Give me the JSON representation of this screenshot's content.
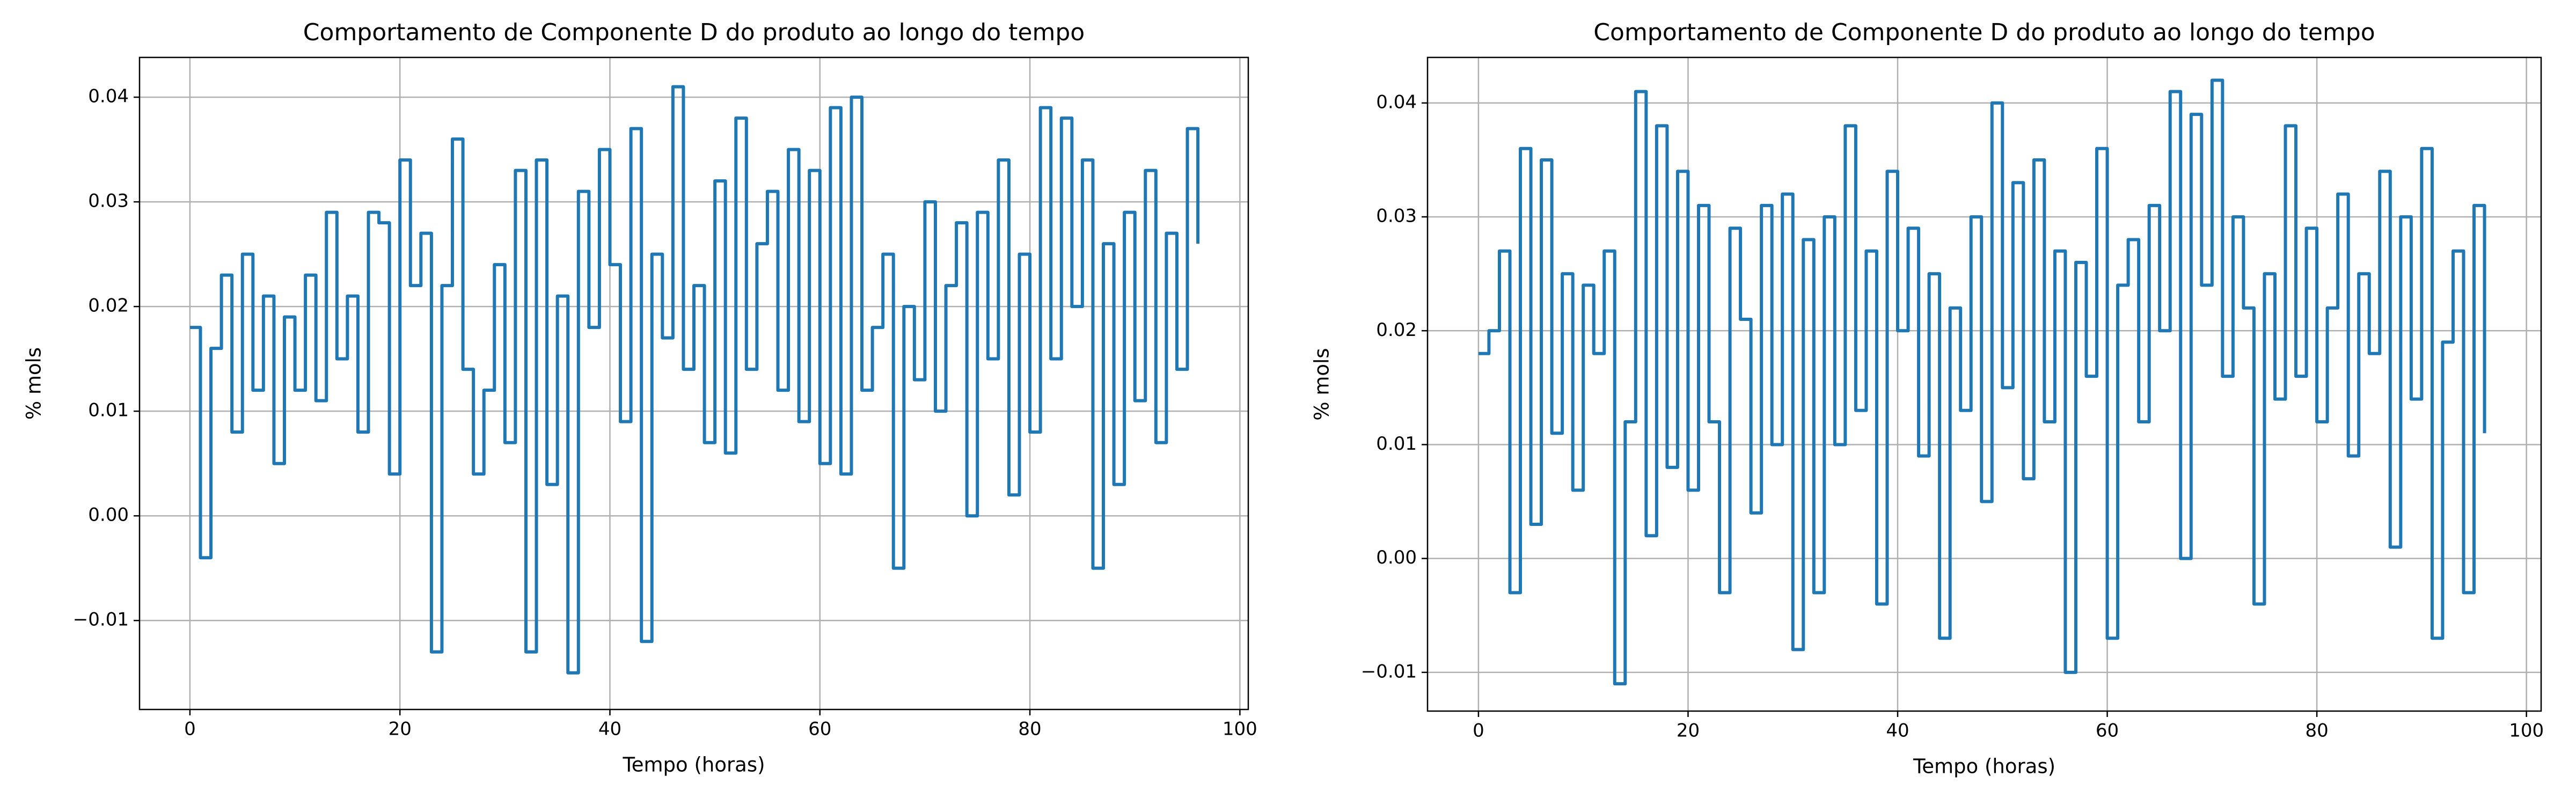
{
  "chart_data": [
    {
      "type": "line",
      "drawstyle": "steps-post",
      "title": "Comportamento de Componente D do produto ao longo do tempo",
      "xlabel": "Tempo (horas)",
      "ylabel": "% mols",
      "grid": true,
      "xlim": [
        -4.8,
        100.8
      ],
      "ylim": [
        -0.0185,
        0.0438
      ],
      "xticks": [
        0,
        20,
        40,
        60,
        80,
        100
      ],
      "yticks": [
        {
          "value": -0.01,
          "label": "−0.01"
        },
        {
          "value": 0,
          "label": "0.00"
        },
        0.01,
        0.02,
        0.03,
        0.04
      ],
      "x": [
        0,
        1,
        2,
        3,
        4,
        5,
        6,
        7,
        8,
        9,
        10,
        11,
        12,
        13,
        14,
        15,
        16,
        17,
        18,
        19,
        20,
        21,
        22,
        23,
        24,
        25,
        26,
        27,
        28,
        29,
        30,
        31,
        32,
        33,
        34,
        35,
        36,
        37,
        38,
        39,
        40,
        41,
        42,
        43,
        44,
        45,
        46,
        47,
        48,
        49,
        50,
        51,
        52,
        53,
        54,
        55,
        56,
        57,
        58,
        59,
        60,
        61,
        62,
        63,
        64,
        65,
        66,
        67,
        68,
        69,
        70,
        71,
        72,
        73,
        74,
        75,
        76,
        77,
        78,
        79,
        80,
        81,
        82,
        83,
        84,
        85,
        86,
        87,
        88,
        89,
        90,
        91,
        92,
        93,
        94,
        95,
        96
      ],
      "series": [
        {
          "color": "#1f77b4",
          "values": [
            0.018,
            -0.004,
            0.016,
            0.023,
            0.008,
            0.025,
            0.012,
            0.021,
            0.005,
            0.019,
            0.012,
            0.023,
            0.011,
            0.029,
            0.015,
            0.021,
            0.008,
            0.029,
            0.028,
            0.004,
            0.034,
            0.022,
            0.027,
            -0.013,
            0.022,
            0.036,
            0.014,
            0.004,
            0.012,
            0.024,
            0.007,
            0.033,
            -0.013,
            0.034,
            0.003,
            0.021,
            -0.015,
            0.031,
            0.018,
            0.035,
            0.024,
            0.009,
            0.037,
            -0.012,
            0.025,
            0.017,
            0.041,
            0.014,
            0.022,
            0.007,
            0.032,
            0.006,
            0.038,
            0.014,
            0.026,
            0.031,
            0.012,
            0.035,
            0.009,
            0.033,
            0.005,
            0.039,
            0.004,
            0.04,
            0.012,
            0.018,
            0.025,
            -0.005,
            0.02,
            0.013,
            0.03,
            0.01,
            0.022,
            0.028,
            0.0,
            0.029,
            0.015,
            0.034,
            0.002,
            0.025,
            0.008,
            0.039,
            0.015,
            0.038,
            0.02,
            0.034,
            -0.005,
            0.026,
            0.003,
            0.029,
            0.011,
            0.033,
            0.007,
            0.027,
            0.014,
            0.037,
            0.026
          ]
        }
      ]
    },
    {
      "type": "line",
      "drawstyle": "steps-post",
      "title": "Comportamento de Componente D do produto ao longo do tempo",
      "xlabel": "Tempo (horas)",
      "ylabel": "% mols",
      "grid": true,
      "xlim": [
        -4.86,
        101.4
      ],
      "ylim": [
        -0.0134,
        0.044
      ],
      "xticks": [
        0,
        20,
        40,
        60,
        80,
        100
      ],
      "yticks": [
        {
          "value": -0.01,
          "label": "−0.01"
        },
        {
          "value": 0,
          "label": "0.00"
        },
        0.01,
        0.02,
        0.03,
        0.04
      ],
      "x": [
        0,
        1,
        2,
        3,
        4,
        5,
        6,
        7,
        8,
        9,
        10,
        11,
        12,
        13,
        14,
        15,
        16,
        17,
        18,
        19,
        20,
        21,
        22,
        23,
        24,
        25,
        26,
        27,
        28,
        29,
        30,
        31,
        32,
        33,
        34,
        35,
        36,
        37,
        38,
        39,
        40,
        41,
        42,
        43,
        44,
        45,
        46,
        47,
        48,
        49,
        50,
        51,
        52,
        53,
        54,
        55,
        56,
        57,
        58,
        59,
        60,
        61,
        62,
        63,
        64,
        65,
        66,
        67,
        68,
        69,
        70,
        71,
        72,
        73,
        74,
        75,
        76,
        77,
        78,
        79,
        80,
        81,
        82,
        83,
        84,
        85,
        86,
        87,
        88,
        89,
        90,
        91,
        92,
        93,
        94,
        95,
        96
      ],
      "series": [
        {
          "color": "#1f77b4",
          "values": [
            0.018,
            0.02,
            0.027,
            -0.003,
            0.036,
            0.003,
            0.035,
            0.011,
            0.025,
            0.006,
            0.024,
            0.018,
            0.027,
            -0.011,
            0.012,
            0.041,
            0.002,
            0.038,
            0.008,
            0.034,
            0.006,
            0.031,
            0.012,
            -0.003,
            0.029,
            0.021,
            0.004,
            0.031,
            0.01,
            0.032,
            -0.008,
            0.028,
            -0.003,
            0.03,
            0.01,
            0.038,
            0.013,
            0.027,
            -0.004,
            0.034,
            0.02,
            0.029,
            0.009,
            0.025,
            -0.007,
            0.022,
            0.013,
            0.03,
            0.005,
            0.04,
            0.015,
            0.033,
            0.007,
            0.035,
            0.012,
            0.027,
            -0.01,
            0.026,
            0.016,
            0.036,
            -0.007,
            0.024,
            0.028,
            0.012,
            0.031,
            0.02,
            0.041,
            0.0,
            0.039,
            0.024,
            0.042,
            0.016,
            0.03,
            0.022,
            -0.004,
            0.025,
            0.014,
            0.038,
            0.016,
            0.029,
            0.012,
            0.022,
            0.032,
            0.009,
            0.025,
            0.018,
            0.034,
            0.001,
            0.03,
            0.014,
            0.036,
            -0.007,
            0.019,
            0.027,
            -0.003,
            0.031,
            0.011
          ]
        }
      ]
    }
  ]
}
